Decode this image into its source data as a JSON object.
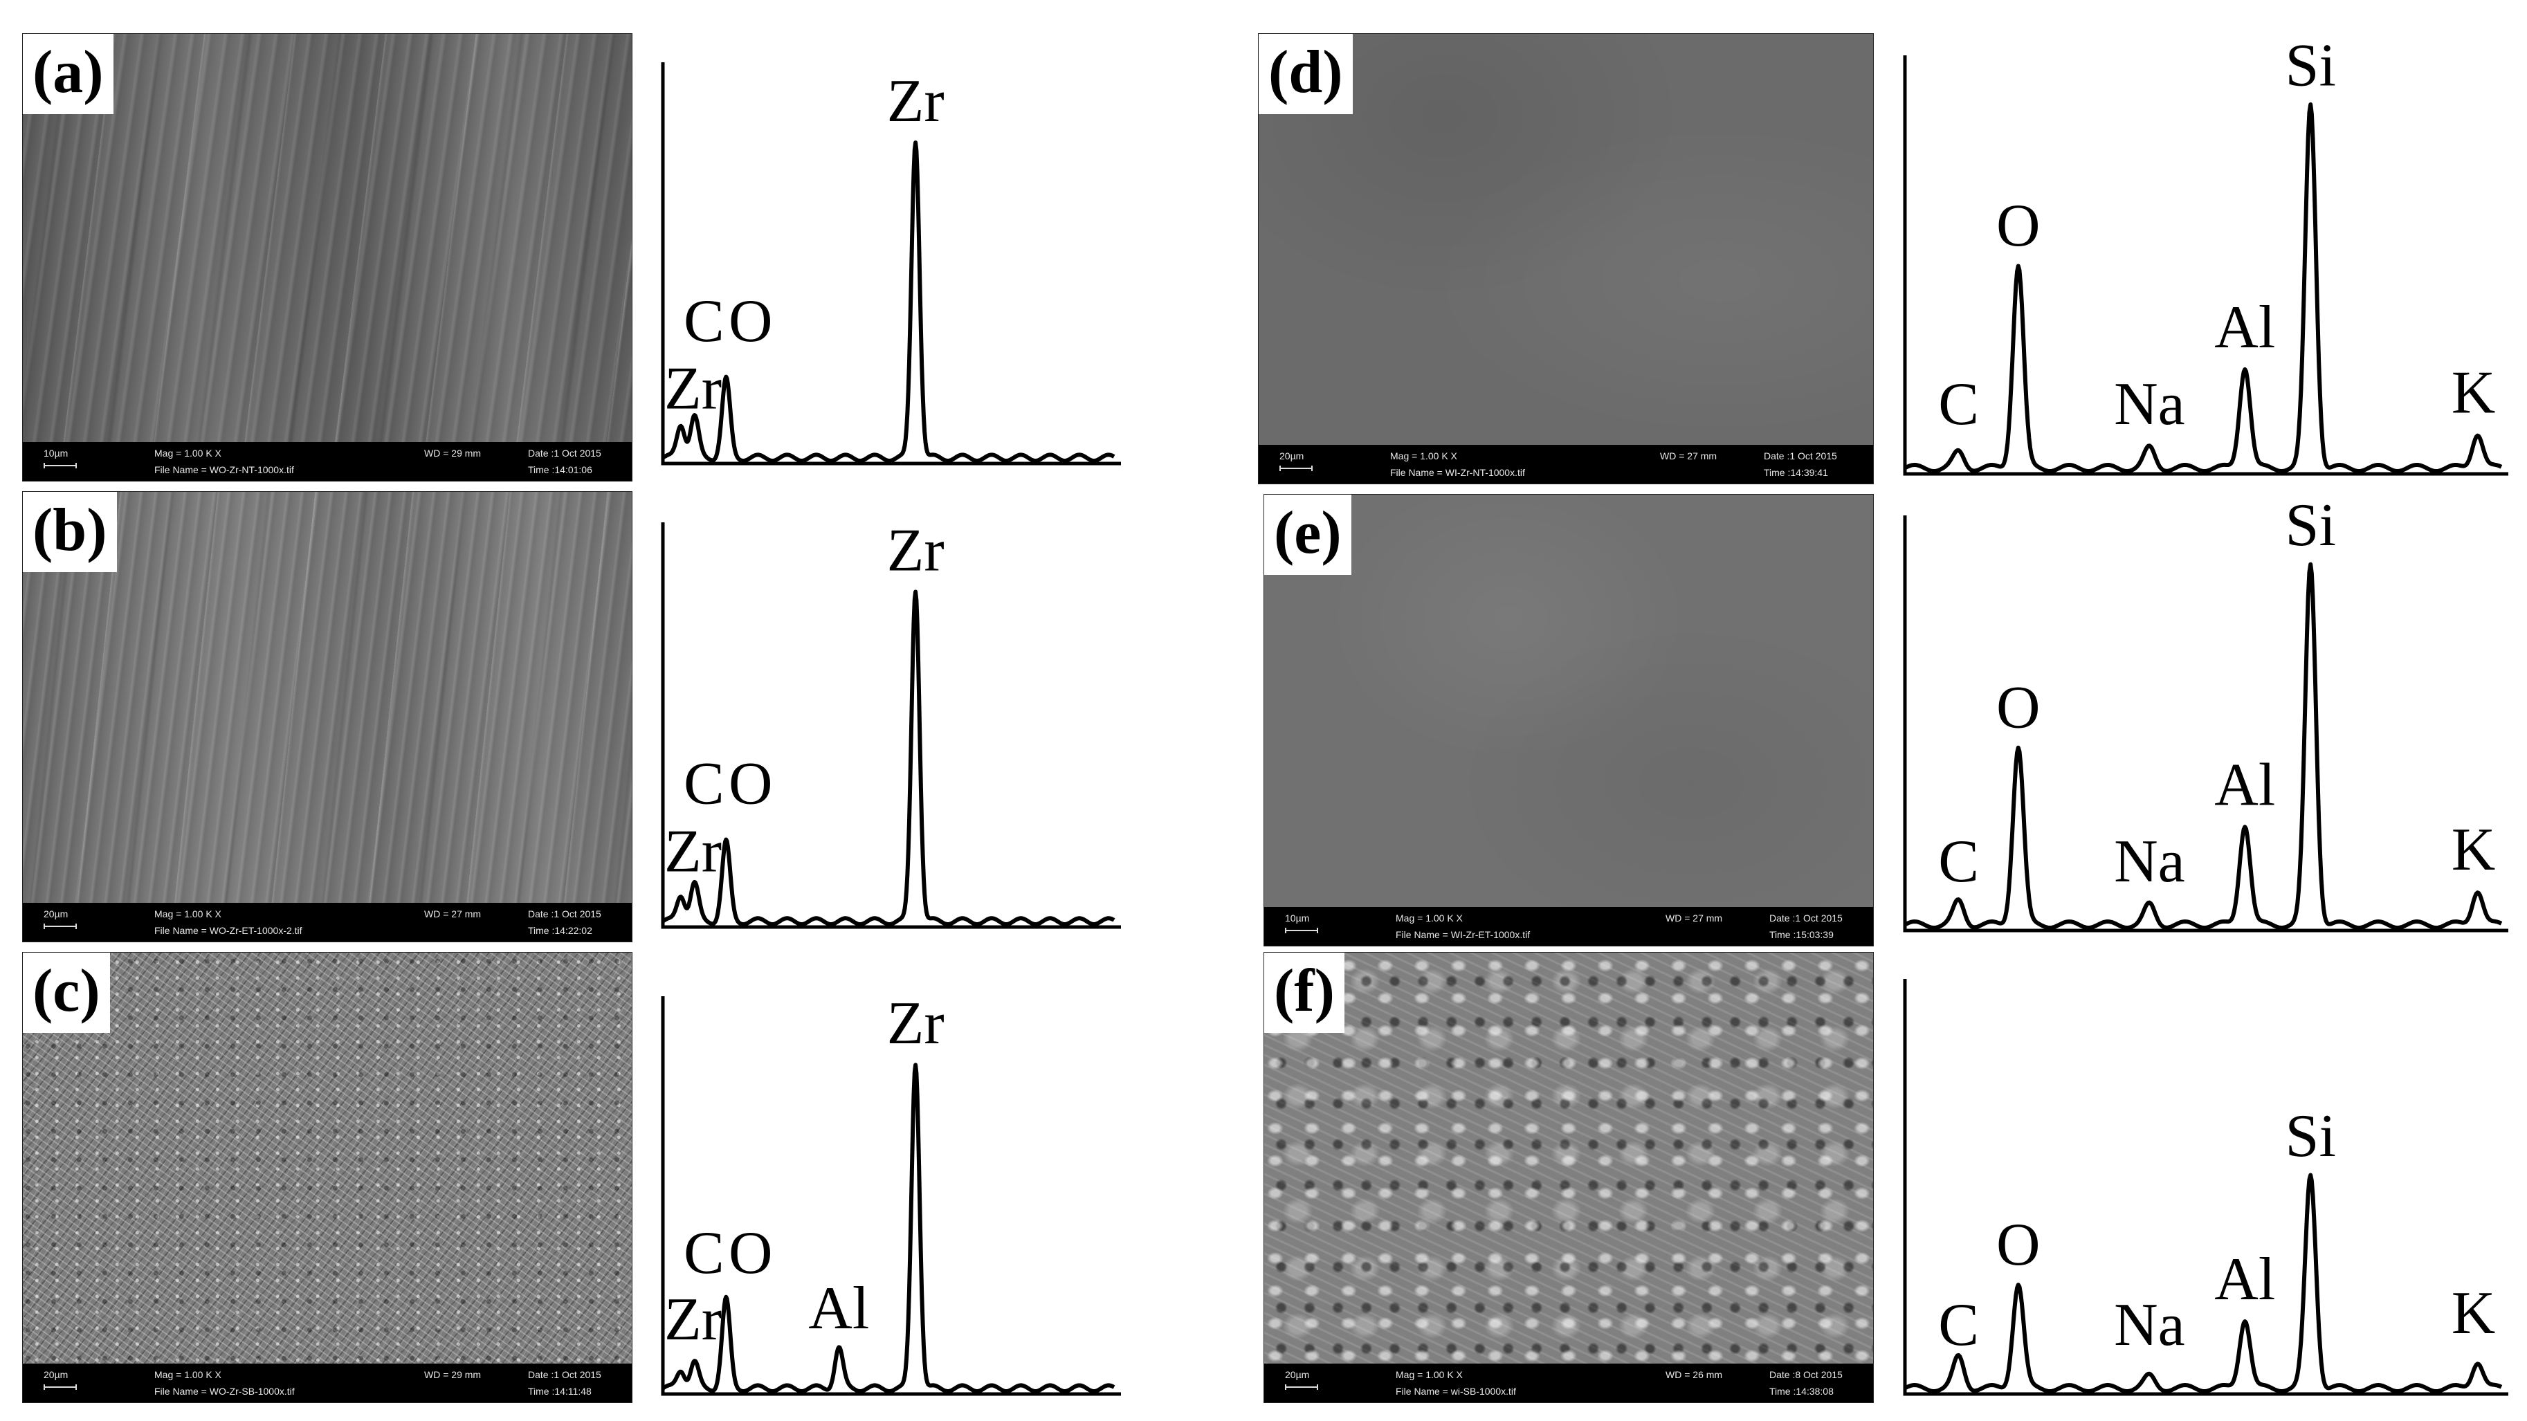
{
  "panels": [
    {
      "letter": "(a)",
      "scale": "10µm",
      "mag": "Mag =   1.00 K X",
      "wd": "WD =   29 mm",
      "date": "Date :1 Oct 2015",
      "file": "File Name = WO-Zr-NT-1000x.tif",
      "time": "Time :14:01:06"
    },
    {
      "letter": "(b)",
      "scale": "20µm",
      "mag": "Mag =   1.00 K X",
      "wd": "WD =   27 mm",
      "date": "Date :1 Oct 2015",
      "file": "File Name = WO-Zr-ET-1000x-2.tif",
      "time": "Time :14:22:02"
    },
    {
      "letter": "(c)",
      "scale": "20µm",
      "mag": "Mag =   1.00 K X",
      "wd": "WD =   29 mm",
      "date": "Date :1 Oct 2015",
      "file": "File Name = WO-Zr-SB-1000x.tif",
      "time": "Time :14:11:48"
    },
    {
      "letter": "(d)",
      "scale": "20µm",
      "mag": "Mag =   1.00 K X",
      "wd": "WD =   27 mm",
      "date": "Date :1 Oct 2015",
      "file": "File Name = WI-Zr-NT-1000x.tif",
      "time": "Time :14:39:41"
    },
    {
      "letter": "(e)",
      "scale": "10µm",
      "mag": "Mag =   1.00 K X",
      "wd": "WD =   27 mm",
      "date": "Date :1 Oct 2015",
      "file": "File Name = WI-Zr-ET-1000x.tif",
      "time": "Time :15:03:39"
    },
    {
      "letter": "(f)",
      "scale": "20µm",
      "mag": "Mag =   1.00 K X",
      "wd": "WD =   26 mm",
      "date": "Date :8 Oct 2015",
      "file": "File Name = wi-SB-1000x.tif",
      "time": "Time :14:38:08"
    }
  ],
  "chart_data": [
    {
      "type": "line",
      "panel": "a",
      "peaks": [
        {
          "label": "C",
          "x": 0.04,
          "y": 0.09
        },
        {
          "label": "O",
          "x": 0.07,
          "y": 0.11
        },
        {
          "label": "Zr",
          "x": 0.14,
          "y": 0.21
        },
        {
          "label": "Zr",
          "x": 0.56,
          "y": 0.85
        }
      ]
    },
    {
      "type": "line",
      "panel": "b",
      "peaks": [
        {
          "label": "C",
          "x": 0.04,
          "y": 0.07
        },
        {
          "label": "O",
          "x": 0.07,
          "y": 0.1
        },
        {
          "label": "Zr",
          "x": 0.14,
          "y": 0.21
        },
        {
          "label": "Zr",
          "x": 0.56,
          "y": 0.88
        }
      ]
    },
    {
      "type": "line",
      "panel": "c",
      "peaks": [
        {
          "label": "C",
          "x": 0.04,
          "y": 0.05
        },
        {
          "label": "O",
          "x": 0.07,
          "y": 0.07
        },
        {
          "label": "Zr",
          "x": 0.14,
          "y": 0.24
        },
        {
          "label": "Al",
          "x": 0.39,
          "y": 0.11
        },
        {
          "label": "Zr",
          "x": 0.56,
          "y": 0.88
        }
      ]
    },
    {
      "type": "line",
      "panel": "d",
      "peaks": [
        {
          "label": "C",
          "x": 0.09,
          "y": 0.04
        },
        {
          "label": "O",
          "x": 0.19,
          "y": 0.52
        },
        {
          "label": "Na",
          "x": 0.41,
          "y": 0.05
        },
        {
          "label": "Al",
          "x": 0.57,
          "y": 0.26
        },
        {
          "label": "Si",
          "x": 0.68,
          "y": 0.93
        },
        {
          "label": "K",
          "x": 0.96,
          "y": 0.09
        }
      ]
    },
    {
      "type": "line",
      "panel": "e",
      "peaks": [
        {
          "label": "C",
          "x": 0.09,
          "y": 0.06
        },
        {
          "label": "O",
          "x": 0.19,
          "y": 0.46
        },
        {
          "label": "Na",
          "x": 0.41,
          "y": 0.05
        },
        {
          "label": "Al",
          "x": 0.57,
          "y": 0.26
        },
        {
          "label": "Si",
          "x": 0.68,
          "y": 0.93
        },
        {
          "label": "K",
          "x": 0.96,
          "y": 0.09
        }
      ]
    },
    {
      "type": "line",
      "panel": "f",
      "peaks": [
        {
          "label": "C",
          "x": 0.09,
          "y": 0.08
        },
        {
          "label": "O",
          "x": 0.19,
          "y": 0.27
        },
        {
          "label": "Na",
          "x": 0.41,
          "y": 0.03
        },
        {
          "label": "Al",
          "x": 0.57,
          "y": 0.18
        },
        {
          "label": "Si",
          "x": 0.68,
          "y": 0.55
        },
        {
          "label": "K",
          "x": 0.96,
          "y": 0.07
        }
      ]
    }
  ]
}
